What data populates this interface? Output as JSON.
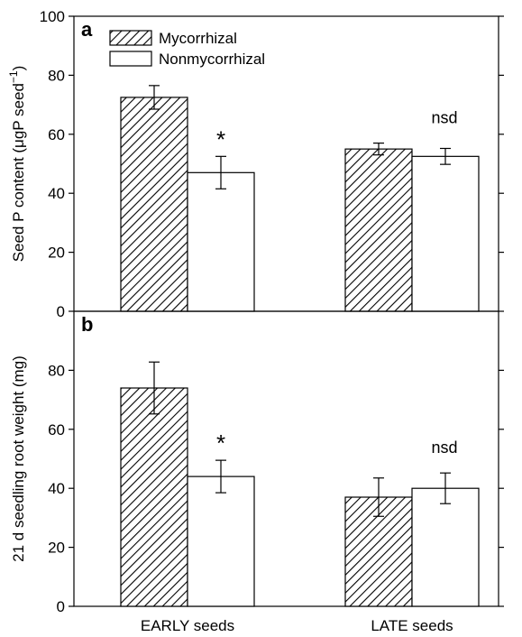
{
  "chart_data": [
    {
      "type": "bar",
      "panel_label": "a",
      "categories": [
        "EARLY seeds",
        "LATE seeds"
      ],
      "series": [
        {
          "name": "Mycorrhizal",
          "values": [
            72.5,
            55.0
          ],
          "errors": [
            4.0,
            2.0
          ],
          "fill": "hatched"
        },
        {
          "name": "Nonmycorrhizal",
          "values": [
            47.0,
            52.5
          ],
          "errors": [
            5.5,
            2.7
          ],
          "fill": "white"
        }
      ],
      "ylabel": "Seed P content (μgP seed",
      "ylabel_sup": "−1",
      "ylabel_end": ")",
      "ylim": [
        0,
        100
      ],
      "yticks": [
        0,
        20,
        40,
        60,
        80,
        100
      ],
      "annotations": [
        "*",
        "nsd"
      ],
      "legend": "top-left"
    },
    {
      "type": "bar",
      "panel_label": "b",
      "categories": [
        "EARLY seeds",
        "LATE seeds"
      ],
      "series": [
        {
          "name": "Mycorrhizal",
          "values": [
            74.0,
            37.0
          ],
          "errors": [
            8.8,
            6.5
          ],
          "fill": "hatched"
        },
        {
          "name": "Nonmycorrhizal",
          "values": [
            44.0,
            40.0
          ],
          "errors": [
            5.5,
            5.2
          ],
          "fill": "white"
        }
      ],
      "ylabel": "21 d seedling root weight (mg)",
      "ylim": [
        0,
        100
      ],
      "yticks": [
        0,
        20,
        40,
        60,
        80
      ],
      "annotations": [
        "*",
        "nsd"
      ]
    }
  ]
}
